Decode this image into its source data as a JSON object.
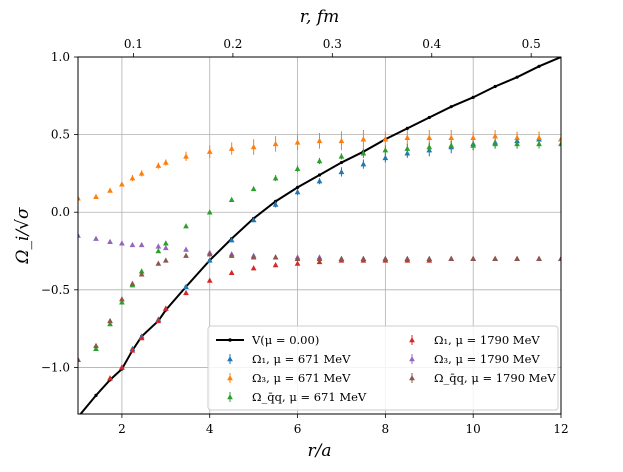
{
  "chart_data": {
    "type": "scatter",
    "xlabel": "r/a",
    "ylabel": "Ω_i/√σ",
    "top_xlabel": "r, fm",
    "xlim": [
      1,
      12
    ],
    "ylim": [
      -1.3,
      1.0
    ],
    "top_xlim": [
      0.0442,
      0.53
    ],
    "grid": true,
    "legend_placement": "lower-right",
    "x_ticks": [
      {
        "value": 2,
        "label": "2"
      },
      {
        "value": 4,
        "label": "4"
      },
      {
        "value": 6,
        "label": "6"
      },
      {
        "value": 8,
        "label": "8"
      },
      {
        "value": 10,
        "label": "10"
      },
      {
        "value": 12,
        "label": "12"
      }
    ],
    "y_ticks": [
      {
        "value": -1.0,
        "label": "−1.0"
      },
      {
        "value": -0.5,
        "label": "−0.5"
      },
      {
        "value": 0.0,
        "label": "0.0"
      },
      {
        "value": 0.5,
        "label": "0.5"
      },
      {
        "value": 1.0,
        "label": "1.0"
      }
    ],
    "top_ticks": [
      {
        "value": 0.1,
        "label": "0.1"
      },
      {
        "value": 0.2,
        "label": "0.2"
      },
      {
        "value": 0.3,
        "label": "0.3"
      },
      {
        "value": 0.4,
        "label": "0.4"
      },
      {
        "value": 0.5,
        "label": "0.5"
      }
    ],
    "series": [
      {
        "name": "V(μ = 0.00)",
        "kind": "line",
        "color": "#000000",
        "x": [
          1.0,
          1.41,
          1.73,
          2.0,
          2.24,
          2.45,
          2.83,
          3.0,
          3.46,
          4.0,
          4.5,
          5.0,
          5.5,
          6.0,
          6.5,
          7.0,
          7.5,
          8.0,
          8.5,
          9.0,
          9.5,
          10.0,
          10.5,
          11.0,
          11.5,
          12.0
        ],
        "y": [
          -1.32,
          -1.18,
          -1.08,
          -1.01,
          -0.89,
          -0.8,
          -0.7,
          -0.63,
          -0.48,
          -0.31,
          -0.17,
          -0.04,
          0.07,
          0.16,
          0.24,
          0.32,
          0.39,
          0.47,
          0.54,
          0.61,
          0.68,
          0.74,
          0.81,
          0.87,
          0.94,
          1.0
        ]
      },
      {
        "name": "Ω_1, μ = 671 MeV",
        "kind": "points",
        "color": "#1f77b4",
        "x": [
          1.73,
          2.0,
          2.24,
          2.45,
          2.83,
          3.0,
          3.46,
          4.0,
          4.5,
          5.0,
          5.5,
          6.0,
          6.5,
          7.0,
          7.5,
          8.0,
          8.5,
          9.0,
          9.5,
          10.0,
          10.5,
          11.0,
          11.5,
          12.0
        ],
        "y": [
          -1.07,
          -1.0,
          -0.88,
          -0.8,
          -0.69,
          -0.62,
          -0.48,
          -0.31,
          -0.18,
          -0.05,
          0.05,
          0.13,
          0.2,
          0.26,
          0.31,
          0.35,
          0.38,
          0.4,
          0.42,
          0.44,
          0.45,
          0.46,
          0.47,
          0.47
        ],
        "err": [
          0.0,
          0.0,
          0.0,
          0.0,
          0.0,
          0.0,
          0.0,
          0.0,
          0.01,
          0.01,
          0.02,
          0.02,
          0.02,
          0.03,
          0.03,
          0.03,
          0.03,
          0.04,
          0.04,
          0.04,
          0.04,
          0.05,
          0.05,
          0.05
        ]
      },
      {
        "name": "Ω_3, μ = 671 MeV",
        "kind": "points",
        "color": "#ff7f0e",
        "x": [
          1.0,
          1.41,
          1.73,
          2.0,
          2.24,
          2.45,
          2.83,
          3.0,
          3.46,
          4.0,
          4.5,
          5.0,
          5.5,
          6.0,
          6.5,
          7.0,
          7.5,
          8.0,
          8.5,
          9.0,
          9.5,
          10.0,
          10.5,
          11.0,
          11.5,
          12.0
        ],
        "y": [
          0.09,
          0.1,
          0.14,
          0.18,
          0.22,
          0.25,
          0.3,
          0.32,
          0.36,
          0.39,
          0.41,
          0.42,
          0.44,
          0.45,
          0.46,
          0.46,
          0.47,
          0.47,
          0.48,
          0.48,
          0.48,
          0.48,
          0.49,
          0.48,
          0.48,
          0.47
        ],
        "err": [
          0.01,
          0.01,
          0.01,
          0.01,
          0.02,
          0.02,
          0.02,
          0.02,
          0.03,
          0.04,
          0.04,
          0.05,
          0.05,
          0.05,
          0.05,
          0.06,
          0.06,
          0.05,
          0.05,
          0.05,
          0.05,
          0.04,
          0.04,
          0.04,
          0.04,
          0.04
        ]
      },
      {
        "name": "Ω_q̄q, μ = 671 MeV",
        "kind": "points",
        "color": "#2ca02c",
        "x": [
          1.0,
          1.41,
          1.73,
          2.0,
          2.24,
          2.45,
          2.83,
          3.0,
          3.46,
          4.0,
          4.5,
          5.0,
          5.5,
          6.0,
          6.5,
          7.0,
          7.5,
          8.0,
          8.5,
          9.0,
          9.5,
          10.0,
          10.5,
          11.0,
          11.5,
          12.0
        ],
        "y": [
          -0.95,
          -0.88,
          -0.72,
          -0.58,
          -0.47,
          -0.38,
          -0.25,
          -0.2,
          -0.09,
          0.0,
          0.08,
          0.15,
          0.22,
          0.28,
          0.33,
          0.36,
          0.38,
          0.4,
          0.41,
          0.42,
          0.43,
          0.43,
          0.44,
          0.44,
          0.44,
          0.44
        ],
        "err": [
          0.0,
          0.0,
          0.0,
          0.0,
          0.0,
          0.0,
          0.0,
          0.0,
          0.0,
          0.01,
          0.01,
          0.01,
          0.02,
          0.02,
          0.02,
          0.02,
          0.03,
          0.03,
          0.03,
          0.03,
          0.03,
          0.03,
          0.03,
          0.03,
          0.03,
          0.03
        ]
      },
      {
        "name": "Ω_1, μ = 1790 MeV",
        "kind": "points",
        "color": "#d62728",
        "x": [
          1.73,
          2.0,
          2.24,
          2.45,
          2.83,
          3.0,
          3.46,
          4.0,
          4.5,
          5.0,
          5.5,
          6.0,
          6.5,
          7.0,
          7.5,
          8.0,
          8.5,
          9.0,
          9.5,
          10.0,
          10.5,
          11.0,
          11.5,
          12.0
        ],
        "y": [
          -1.07,
          -1.0,
          -0.89,
          -0.81,
          -0.7,
          -0.62,
          -0.52,
          -0.44,
          -0.39,
          -0.36,
          -0.34,
          -0.33,
          -0.32,
          -0.31,
          -0.31,
          -0.31,
          -0.31,
          -0.31,
          -0.3,
          -0.3,
          -0.3,
          -0.3,
          -0.3,
          -0.3
        ],
        "err": [
          0.0,
          0.0,
          0.0,
          0.0,
          0.0,
          0.0,
          0.0,
          0.0,
          0.0,
          0.01,
          0.01,
          0.01,
          0.01,
          0.01,
          0.01,
          0.01,
          0.01,
          0.01,
          0.01,
          0.01,
          0.01,
          0.01,
          0.01,
          0.01
        ]
      },
      {
        "name": "Ω_3, μ = 1790 MeV",
        "kind": "points",
        "color": "#9467bd",
        "x": [
          1.0,
          1.41,
          1.73,
          2.0,
          2.24,
          2.45,
          2.83,
          3.0,
          3.46,
          4.0,
          4.5,
          5.0,
          5.5,
          6.0,
          6.5,
          7.0,
          7.5,
          8.0,
          8.5,
          9.0,
          9.5,
          10.0,
          10.5,
          11.0,
          11.5,
          12.0
        ],
        "y": [
          -0.15,
          -0.17,
          -0.19,
          -0.2,
          -0.21,
          -0.21,
          -0.22,
          -0.23,
          -0.24,
          -0.26,
          -0.27,
          -0.28,
          -0.29,
          -0.29,
          -0.29,
          -0.3,
          -0.3,
          -0.3,
          -0.3,
          -0.3,
          -0.3,
          -0.3,
          -0.3,
          -0.3,
          -0.3,
          -0.3
        ],
        "err": [
          0.01,
          0.01,
          0.01,
          0.01,
          0.01,
          0.01,
          0.01,
          0.01,
          0.01,
          0.01,
          0.01,
          0.01,
          0.01,
          0.01,
          0.01,
          0.01,
          0.01,
          0.01,
          0.01,
          0.01,
          0.01,
          0.01,
          0.01,
          0.01,
          0.01,
          0.01
        ]
      },
      {
        "name": "Ω_q̄q, μ = 1790 MeV",
        "kind": "points",
        "color": "#8c564b",
        "x": [
          1.0,
          1.41,
          1.73,
          2.0,
          2.24,
          2.45,
          2.83,
          3.0,
          3.46,
          4.0,
          4.5,
          5.0,
          5.5,
          6.0,
          6.5,
          7.0,
          7.5,
          8.0,
          8.5,
          9.0,
          9.5,
          10.0,
          10.5,
          11.0,
          11.5,
          12.0
        ],
        "y": [
          -0.95,
          -0.86,
          -0.7,
          -0.56,
          -0.46,
          -0.4,
          -0.33,
          -0.31,
          -0.28,
          -0.27,
          -0.28,
          -0.29,
          -0.29,
          -0.3,
          -0.3,
          -0.3,
          -0.3,
          -0.3,
          -0.3,
          -0.3,
          -0.3,
          -0.3,
          -0.3,
          -0.3,
          -0.3,
          -0.3
        ],
        "err": [
          0.0,
          0.0,
          0.0,
          0.0,
          0.0,
          0.0,
          0.0,
          0.0,
          0.01,
          0.01,
          0.01,
          0.01,
          0.01,
          0.01,
          0.01,
          0.01,
          0.01,
          0.01,
          0.01,
          0.01,
          0.01,
          0.01,
          0.01,
          0.01,
          0.01,
          0.01
        ]
      }
    ],
    "legend": {
      "columns": 2,
      "entries": [
        {
          "series": 0,
          "label": "V(μ = 0.00)"
        },
        {
          "series": 1,
          "label": "Ω₁, μ = 671 MeV"
        },
        {
          "series": 2,
          "label": "Ω₃, μ = 671 MeV"
        },
        {
          "series": 3,
          "label": "Ω_q̄q, μ = 671 MeV"
        },
        {
          "series": 4,
          "label": "Ω₁, μ = 1790 MeV"
        },
        {
          "series": 5,
          "label": "Ω₃, μ = 1790 MeV"
        },
        {
          "series": 6,
          "label": "Ω_q̄q, μ = 1790 MeV"
        }
      ]
    }
  }
}
